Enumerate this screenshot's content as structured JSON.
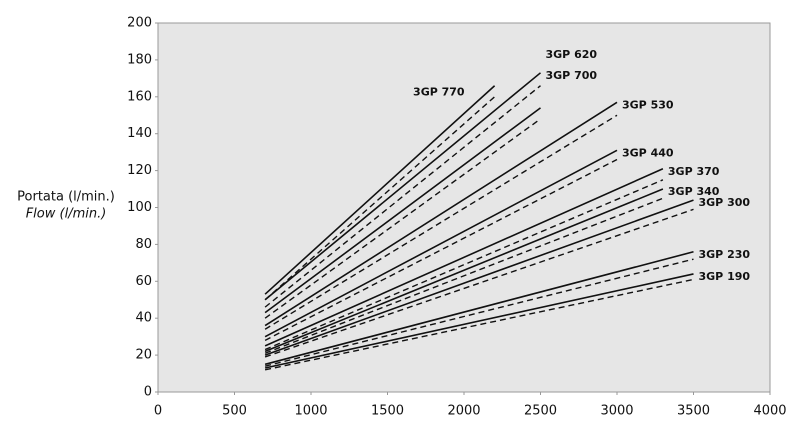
{
  "chart_data": {
    "type": "line",
    "ylabel": [
      "Portata (l/min.)",
      "Flow (l/min.)"
    ],
    "xlim": [
      0,
      4000
    ],
    "xticks": [
      0,
      500,
      1000,
      1500,
      2000,
      2500,
      3000,
      3500,
      4000
    ],
    "ylim": [
      0,
      200
    ],
    "yticks": [
      0,
      20,
      40,
      60,
      80,
      100,
      120,
      140,
      160,
      180,
      200
    ],
    "grid": false,
    "background": "#e6e6e6",
    "color": "#111111",
    "series": [
      {
        "name": "3GP 770",
        "x": [
          700,
          2200
        ],
        "values": [
          53,
          166
        ],
        "dashed_values": [
          50,
          160
        ]
      },
      {
        "name": "3GP 700",
        "x": [
          700,
          2500
        ],
        "values": [
          50,
          173
        ],
        "dashed_values": [
          46,
          166
        ]
      },
      {
        "name": "3GP 620",
        "x": [
          700,
          2500
        ],
        "values": [
          43,
          154
        ],
        "dashed_values": [
          40,
          148
        ]
      },
      {
        "name": "3GP 530",
        "x": [
          700,
          3000
        ],
        "values": [
          36,
          157
        ],
        "dashed_values": [
          34,
          150
        ]
      },
      {
        "name": "3GP 440",
        "x": [
          700,
          3000
        ],
        "values": [
          30,
          131
        ],
        "dashed_values": [
          28,
          126
        ]
      },
      {
        "name": "3GP 370",
        "x": [
          700,
          3300
        ],
        "values": [
          25,
          121
        ],
        "dashed_values": [
          23,
          115
        ]
      },
      {
        "name": "3GP 340",
        "x": [
          700,
          3300
        ],
        "values": [
          22,
          110
        ],
        "dashed_values": [
          21,
          105
        ]
      },
      {
        "name": "3GP 300",
        "x": [
          700,
          3500
        ],
        "values": [
          20,
          104
        ],
        "dashed_values": [
          19,
          99
        ]
      },
      {
        "name": "3GP 230",
        "x": [
          700,
          3500
        ],
        "values": [
          15,
          76
        ],
        "dashed_values": [
          14,
          72
        ]
      },
      {
        "name": "3GP 190",
        "x": [
          700,
          3500
        ],
        "values": [
          13,
          64
        ],
        "dashed_values": [
          12,
          61
        ]
      }
    ]
  }
}
